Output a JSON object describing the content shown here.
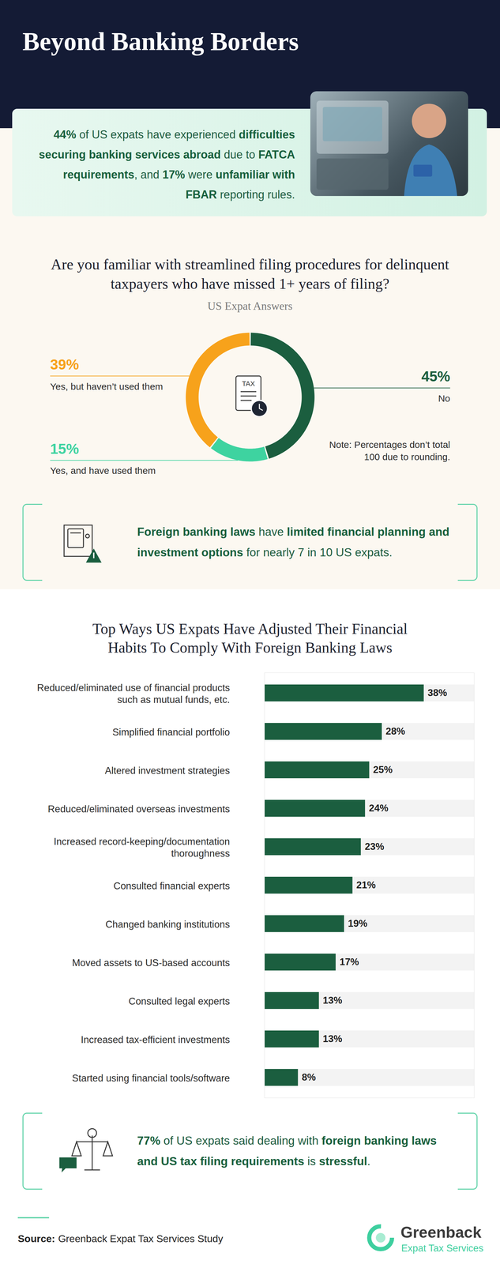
{
  "header": {
    "title": "Beyond Banking Borders"
  },
  "callouts": [
    [
      {
        "strong": "44%"
      },
      " of US expats have experienced ",
      {
        "strong": "difficulties securing banking services abroad"
      },
      " due to ",
      {
        "strong": "FATCA requirements"
      },
      ", and ",
      {
        "strong": "17%"
      },
      " were ",
      {
        "strong": "unfamiliar with FBAR"
      },
      " reporting rules."
    ],
    [
      {
        "strong": "Foreign banking laws"
      },
      " have ",
      {
        "strong": "limited financial planning and investment options"
      },
      " for nearly 7 in 10 US expats."
    ],
    [
      {
        "strong": "77%"
      },
      " of US expats said dealing with ",
      {
        "strong": "foreign banking laws and US tax filing requirements"
      },
      " is ",
      {
        "strong": "stressful"
      },
      "."
    ]
  ],
  "chart_data": [
    {
      "type": "donut",
      "title": "Are you familiar with streamlined filing procedures for delinquent taxpayers who have missed 1+ years of filing?",
      "subtitle": "US Expat Answers",
      "categories": [
        "No",
        "Yes, and have used them",
        "Yes, but haven’t used them"
      ],
      "values": [
        45,
        15,
        39
      ],
      "value_labels": [
        "45%",
        "15%",
        "39%"
      ],
      "colors": [
        "#1b5e3f",
        "#3ed3a0",
        "#f7a21b"
      ],
      "data_labels": true,
      "annotations": {
        "note": "Note: Percentages don’t total 100 due to rounding.",
        "center": "TAX"
      }
    },
    {
      "type": "bar",
      "orientation": "horizontal",
      "title": "Top Ways US Expats Have Adjusted Their Financial Habits To Comply With Foreign Banking Laws",
      "categories": [
        "Reduced/eliminated use of financial products such as mutual funds, etc.",
        "Simplified financial portfolio",
        "Altered investment strategies",
        "Reduced/eliminated overseas investments",
        "Increased record-keeping/documentation thoroughness",
        "Consulted financial experts",
        "Changed banking institutions",
        "Moved assets to US-based accounts",
        "Consulted legal experts",
        "Increased tax-efficient investments",
        "Started using financial tools/software"
      ],
      "values": [
        38,
        28,
        25,
        24,
        23,
        21,
        19,
        17,
        13,
        13,
        8
      ],
      "value_labels": [
        "38%",
        "28%",
        "25%",
        "24%",
        "23%",
        "21%",
        "19%",
        "17%",
        "13%",
        "13%",
        "8%"
      ],
      "color": "#1b5e3f",
      "xlim": [
        0,
        50
      ],
      "xticks": [],
      "data_labels": true,
      "tick_labels": "y"
    }
  ],
  "source": {
    "label": "Source:",
    "text": "Greenback Expat Tax Services Study"
  },
  "brand": {
    "name": "Greenback",
    "tagline": "Expat Tax Services"
  }
}
